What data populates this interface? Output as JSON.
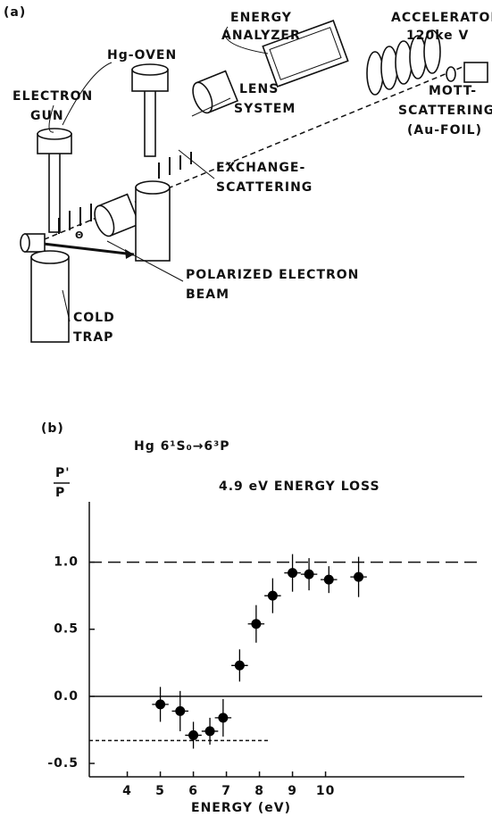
{
  "panel_a": {
    "panel_label": "(a)",
    "labels": {
      "energy_analyzer": [
        "ENERGY",
        "ANALYZER"
      ],
      "accelerator": [
        "ACCELERATOR",
        "120ke V"
      ],
      "hg_oven": [
        "Hg-OVEN"
      ],
      "electron_gun": [
        "ELECTRON",
        "GUN"
      ],
      "lens_system": [
        "LENS",
        "SYSTEM"
      ],
      "mott_scattering": [
        "MOTT-",
        "SCATTERING",
        "(Au-FOIL)"
      ],
      "exchange_scattering": [
        "EXCHANGE-",
        "SCATTERING"
      ],
      "polarized_beam": [
        "POLARIZED ELECTRON",
        "BEAM"
      ],
      "cold_trap": [
        "COLD",
        "TRAP"
      ],
      "angle": [
        "Θ"
      ]
    }
  },
  "chart_data": {
    "type": "scatter",
    "panel_label": "(b)",
    "title": "Hg 6¹S₀→6³P",
    "annotation": "4.9 eV ENERGY LOSS",
    "ylabel": {
      "numerator": "P'",
      "denominator": "P"
    },
    "xlabel": "ENERGY (eV)",
    "color": "#000000",
    "x": [
      5.0,
      5.6,
      6.0,
      6.5,
      6.9,
      7.4,
      7.9,
      8.4,
      9.0,
      9.5,
      10.1,
      11.0
    ],
    "values": [
      -0.06,
      -0.11,
      -0.29,
      -0.26,
      -0.16,
      0.23,
      0.54,
      0.75,
      0.92,
      0.91,
      0.87,
      0.89
    ],
    "yerr": [
      0.13,
      0.15,
      0.1,
      0.1,
      0.14,
      0.12,
      0.14,
      0.13,
      0.14,
      0.12,
      0.1,
      0.15
    ],
    "xerr": [
      0.25,
      0.25,
      0.25,
      0.25,
      0.25,
      0.25,
      0.25,
      0.25,
      0.25,
      0.25,
      0.25,
      0.25
    ],
    "reference_lines": [
      {
        "value": 1,
        "style": "dashed"
      },
      {
        "value": 0,
        "style": "solid"
      },
      {
        "value": -0.33,
        "style": "dotted",
        "xlim": [
          2.85,
          8.3
        ]
      }
    ],
    "xlim": [
      2.85,
      14.2
    ],
    "ylim": [
      -0.6,
      1.45
    ],
    "xticks": [
      4,
      5,
      6,
      7,
      8,
      9,
      10
    ],
    "yticks": [
      {
        "value": 1,
        "label": "1.0"
      },
      {
        "value": 0.5,
        "label": "0.5"
      },
      {
        "value": 0,
        "label": "0.0"
      },
      {
        "value": -0.5,
        "label": "-0.5"
      }
    ]
  }
}
